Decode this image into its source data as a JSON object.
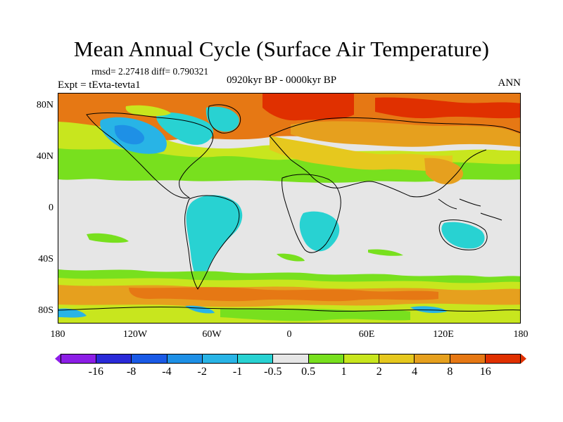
{
  "title": "Mean Annual Cycle (Surface Air Temperature)",
  "stats": "rmsd= 2.27418 diff= 0.790321",
  "experiment": "Expt = tEvta-tevta1",
  "period": "0920kyr BP - 0000kyr BP",
  "season": "ANN",
  "y_ticks": [
    "80N",
    "40N",
    "0",
    "40S",
    "80S"
  ],
  "x_ticks": [
    "180",
    "120W",
    "60W",
    "0",
    "60E",
    "120E",
    "180"
  ],
  "colorbar": {
    "labels": [
      "-16",
      "-8",
      "-4",
      "-2",
      "-1",
      "-0.5",
      "0.5",
      "1",
      "2",
      "4",
      "8",
      "16"
    ],
    "colors": [
      "#8c1ee6",
      "#2a2ad8",
      "#1a5ae6",
      "#1e90e6",
      "#28b4e6",
      "#28d2d2",
      "#e6e6e6",
      "#78e01e",
      "#c8e61e",
      "#e6c81e",
      "#e6a01e",
      "#e67814",
      "#e03000"
    ]
  },
  "colors": {
    "neutral": "#e6e6e6",
    "cold_light": "#28d2d2",
    "cold_med": "#28b4e6",
    "cold_dark": "#1e90e6",
    "warm_1": "#78e01e",
    "warm_2": "#c8e61e",
    "warm_3": "#e6c81e",
    "warm_4": "#e6a01e",
    "warm_5": "#e67814",
    "warm_6": "#e03000"
  }
}
